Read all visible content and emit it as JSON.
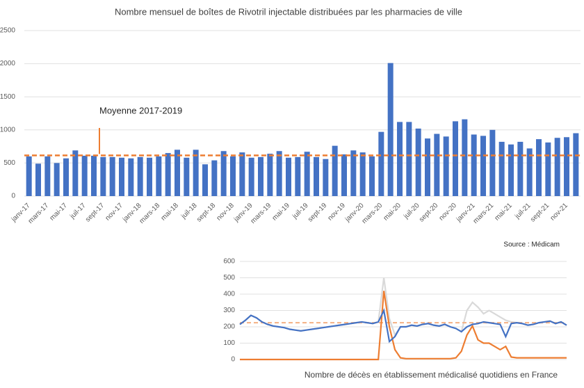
{
  "chart_data": [
    {
      "type": "bar",
      "title": "Nombre mensuel de boîtes de Rivotril injectable distribuées par les pharmacies de ville",
      "categories": [
        "janv-17",
        null,
        "mars-17",
        null,
        "mai-17",
        null,
        "juil-17",
        null,
        "sept-17",
        null,
        "nov-17",
        null,
        "janv-18",
        null,
        "mars-18",
        null,
        "mai-18",
        null,
        "juil-18",
        null,
        "sept-18",
        null,
        "nov-18",
        null,
        "janv-19",
        null,
        "mars-19",
        null,
        "mai-19",
        null,
        "juil-19",
        null,
        "sept-19",
        null,
        "nov-19",
        null,
        "janv-20",
        null,
        "mars-20",
        null,
        "mai-20",
        null,
        "juil-20",
        null,
        "sept-20",
        null,
        "nov-20",
        null,
        "janv-21",
        null,
        "mars-21",
        null,
        "mai-21",
        null,
        "juil-21",
        null,
        "sept-21",
        null,
        "nov-21",
        null
      ],
      "values": [
        600,
        490,
        600,
        500,
        570,
        690,
        610,
        610,
        590,
        590,
        580,
        570,
        590,
        580,
        600,
        650,
        700,
        580,
        700,
        480,
        540,
        680,
        600,
        660,
        580,
        590,
        640,
        680,
        580,
        590,
        670,
        590,
        560,
        760,
        630,
        690,
        660,
        600,
        970,
        2010,
        1120,
        1120,
        1020,
        870,
        940,
        900,
        1130,
        1160,
        930,
        910,
        1000,
        820,
        780,
        820,
        720,
        860,
        810,
        880,
        890,
        950
      ],
      "color": "#4472c4",
      "average_line": {
        "label": "Moyenne 2017-2019",
        "value": 615,
        "color": "#ed7d31"
      },
      "source": "Source : Médicam",
      "ylim": [
        0,
        2500
      ],
      "yticks": [
        0,
        500,
        1000,
        1500,
        2000,
        2500
      ],
      "grid": true
    },
    {
      "type": "line",
      "title": "Nombre de décès en établissement médicalisé quotidiens en France",
      "series": [
        {
          "color": "#d9d9d9",
          "values": [
            215,
            240,
            270,
            255,
            230,
            215,
            205,
            200,
            195,
            185,
            180,
            175,
            180,
            185,
            190,
            195,
            200,
            205,
            210,
            215,
            220,
            225,
            230,
            225,
            220,
            230,
            500,
            250,
            150,
            200,
            200,
            210,
            205,
            215,
            220,
            210,
            205,
            215,
            200,
            190,
            170,
            300,
            350,
            320,
            280,
            300,
            280,
            260,
            240,
            230,
            225,
            220,
            210,
            215,
            225,
            230,
            235,
            220,
            230,
            210
          ]
        },
        {
          "color": "#ed7d31",
          "values": [
            0,
            0,
            0,
            0,
            0,
            0,
            0,
            0,
            0,
            0,
            0,
            0,
            0,
            0,
            0,
            0,
            0,
            0,
            0,
            0,
            0,
            0,
            0,
            0,
            0,
            0,
            420,
            200,
            60,
            10,
            5,
            5,
            5,
            5,
            5,
            5,
            5,
            5,
            5,
            10,
            50,
            150,
            205,
            120,
            100,
            100,
            80,
            60,
            80,
            15,
            10,
            10,
            10,
            10,
            10,
            10,
            10,
            10,
            10,
            10
          ]
        },
        {
          "color": "#4472c4",
          "values": [
            215,
            240,
            270,
            255,
            230,
            215,
            205,
            200,
            195,
            185,
            180,
            175,
            180,
            185,
            190,
            195,
            200,
            205,
            210,
            215,
            220,
            225,
            230,
            225,
            220,
            230,
            300,
            110,
            140,
            200,
            200,
            210,
            205,
            215,
            220,
            210,
            205,
            215,
            200,
            190,
            170,
            200,
            215,
            220,
            230,
            225,
            220,
            215,
            140,
            220,
            225,
            220,
            210,
            215,
            225,
            230,
            235,
            220,
            230,
            210
          ]
        }
      ],
      "average_line": {
        "value": 225,
        "color": "#f4b183"
      },
      "ylim": [
        0,
        600
      ],
      "yticks": [
        0,
        100,
        200,
        300,
        400,
        500,
        600
      ],
      "grid": true
    }
  ]
}
